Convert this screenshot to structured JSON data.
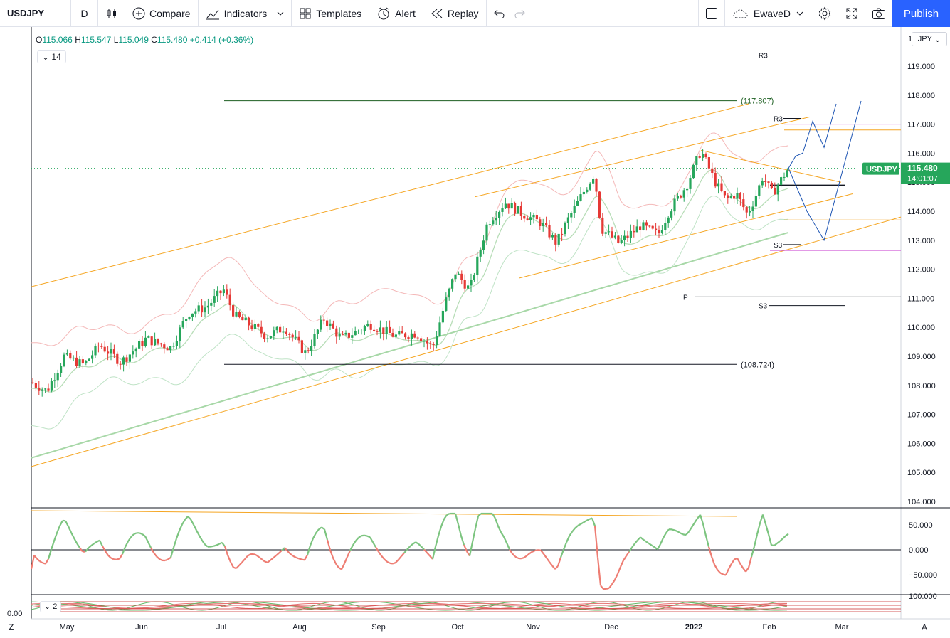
{
  "toolbar": {
    "symbol": "USDJPY",
    "interval": "D",
    "compare": "Compare",
    "indicators": "Indicators",
    "templates": "Templates",
    "alert": "Alert",
    "replay": "Replay",
    "layout_name": "EwaveD",
    "publish": "Publish"
  },
  "legend": {
    "o_label": "O",
    "o": "115.066",
    "h_label": "H",
    "h": "115.547",
    "l_label": "L",
    "l": "115.049",
    "c_label": "C",
    "c": "115.480",
    "change": "+0.414 (+0.36%)",
    "indicator_count": "14",
    "sub_indicator_count": "2"
  },
  "price_axis": {
    "currency": "JPY",
    "partial_top_label": "1",
    "ticks": [
      "119.000",
      "118.000",
      "117.000",
      "116.000",
      "115.000",
      "114.000",
      "113.000",
      "112.000",
      "111.000",
      "110.000",
      "109.000",
      "108.000",
      "107.000",
      "106.000",
      "105.000",
      "104.000"
    ],
    "current_symbol": "USDJPY",
    "current_price": "115.480",
    "countdown": "14:01:07"
  },
  "oscillator_axis": {
    "ticks": [
      "50.000",
      "0.000",
      "−50.000",
      "100.000"
    ],
    "left_label": "0.00"
  },
  "time_axis": {
    "labels": [
      "May",
      "Jun",
      "Jul",
      "Aug",
      "Sep",
      "Oct",
      "Nov",
      "Dec",
      "2022",
      "Feb",
      "Mar"
    ]
  },
  "annotations": {
    "r3_top": "R3",
    "r3_mid": "R3",
    "s3_mid": "S3",
    "pivot": "P",
    "s3_low": "S3",
    "level_high": "(117.807)",
    "level_low": "(108.724)"
  },
  "corners": {
    "left": "Z",
    "right": "A"
  },
  "colors": {
    "up": "#26a65b",
    "down": "#e53935",
    "orange": "#f5a623",
    "blue": "#1e55b3",
    "accent": "#2962ff",
    "magenta": "#d05cd8",
    "sma": "#a8d8a8"
  },
  "chart_data": {
    "type": "candlestick",
    "symbol": "USDJPY",
    "interval": "D",
    "ylim": [
      103.8,
      120.3
    ],
    "ohlc_last": {
      "open": 115.066,
      "high": 115.547,
      "low": 115.049,
      "close": 115.48
    },
    "levels": [
      {
        "label": "(117.807)",
        "value": 117.807
      },
      {
        "label": "(108.724)",
        "value": 108.724
      }
    ],
    "current_price": 115.48
  }
}
